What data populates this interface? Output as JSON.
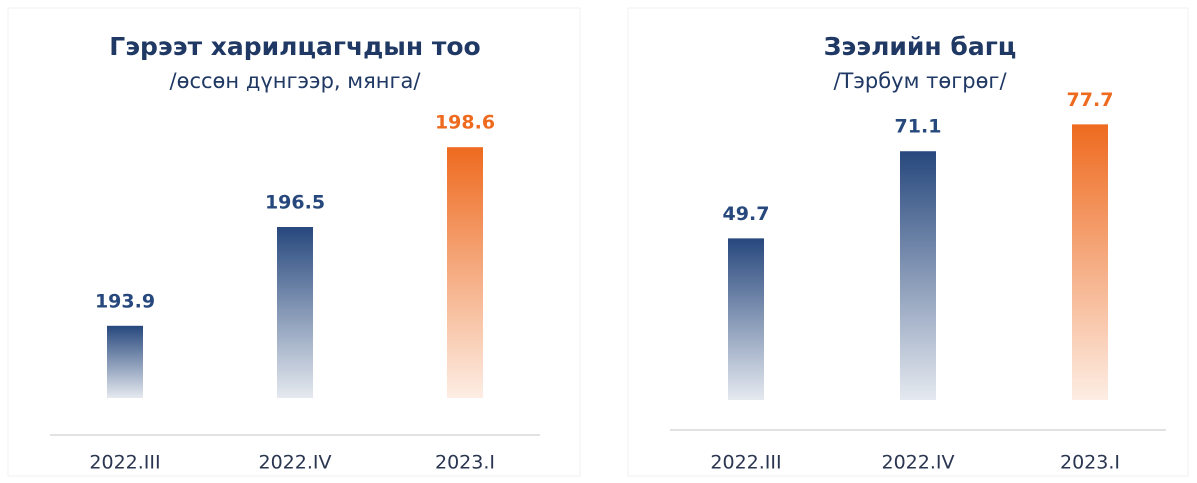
{
  "chart_data": [
    {
      "type": "bar",
      "title": "Гэрээт харилцагчдын тоо",
      "subtitle": "/өссөн дүнгээр, мянга/",
      "categories": [
        "2022.III",
        "2022.IV",
        "2023.I"
      ],
      "values": [
        193.9,
        196.5,
        198.6
      ],
      "colors": [
        "#27487d",
        "#27487d",
        "#ee6a1f"
      ],
      "ylim": [
        192,
        200
      ]
    },
    {
      "type": "bar",
      "title": "Зээлийн багц",
      "subtitle": "/Тэрбум төгрөг/",
      "categories": [
        "2022.III",
        "2022.IV",
        "2023.I"
      ],
      "values": [
        49.7,
        71.1,
        77.7
      ],
      "colors": [
        "#27487d",
        "#27487d",
        "#ee6a1f"
      ],
      "ylim": [
        10,
        80
      ]
    }
  ]
}
